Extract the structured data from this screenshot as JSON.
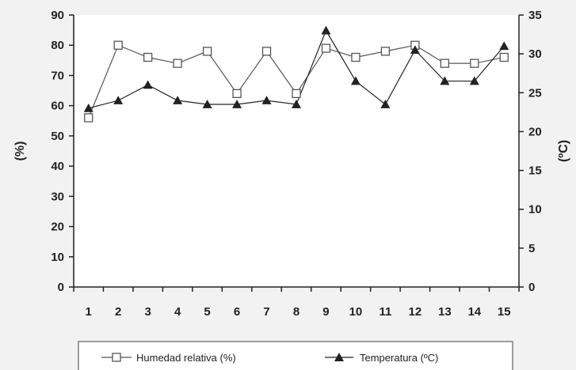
{
  "chart_data": {
    "type": "line",
    "title": "",
    "xlabel": "",
    "ylabel_left": "(%)",
    "ylabel_right": "(ºC)",
    "categories": [
      "1",
      "2",
      "3",
      "4",
      "5",
      "6",
      "7",
      "8",
      "9",
      "10",
      "11",
      "12",
      "13",
      "14",
      "15"
    ],
    "ylim_left": [
      0,
      90
    ],
    "yticks_left": [
      "0",
      "10",
      "20",
      "30",
      "40",
      "50",
      "60",
      "70",
      "80",
      "90"
    ],
    "ylim_right": [
      0,
      35
    ],
    "yticks_right": [
      "0",
      "5",
      "10",
      "15",
      "20",
      "25",
      "30",
      "35"
    ],
    "grid": false,
    "legend_position": "bottom",
    "series": [
      {
        "name": "Humedad relativa (%)",
        "axis": "left",
        "marker": "square-open",
        "color": "#555555",
        "values": [
          56,
          80,
          76,
          74,
          78,
          64,
          78,
          64,
          79,
          76,
          78,
          80,
          74,
          74,
          76
        ]
      },
      {
        "name": "Temperatura (ºC)",
        "axis": "right",
        "marker": "triangle-filled",
        "color": "#222222",
        "values": [
          23,
          24,
          26,
          24,
          23.5,
          23.5,
          24,
          23.5,
          33,
          26.5,
          23.5,
          30.5,
          26.5,
          26.5,
          31
        ]
      }
    ]
  }
}
